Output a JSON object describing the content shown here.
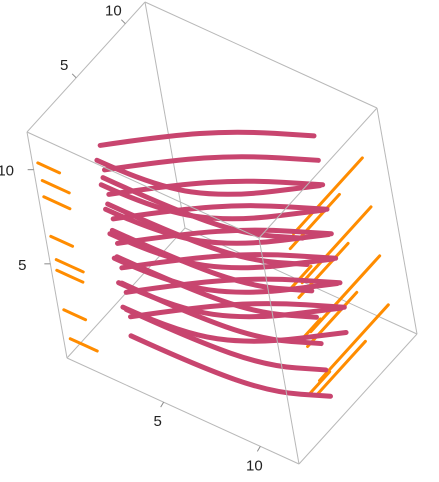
{
  "chart_data": {
    "type": "line",
    "dimension": "3d",
    "title": "",
    "box": true,
    "grid": false,
    "colors": {
      "main": "#c8456f",
      "shadow": "#ff8c00"
    },
    "axes": {
      "x": {
        "range": [
          0,
          12
        ],
        "tick_labels": [
          "5",
          "10"
        ],
        "ticks": [
          5,
          10
        ]
      },
      "y": {
        "range": [
          0,
          12
        ],
        "tick_labels": [
          "5",
          "10"
        ],
        "ticks": [
          5,
          10
        ]
      },
      "z": {
        "range": [
          0,
          12
        ],
        "tick_labels": [
          "5",
          "10"
        ],
        "ticks": [
          5,
          10
        ]
      }
    },
    "series": [
      {
        "values": [
          [
            2.0,
            3.0,
            10.5
          ],
          [
            4.0,
            5.5,
            10.5
          ],
          [
            6.5,
            8.0,
            10.5
          ],
          [
            9.5,
            10.0,
            10.5
          ]
        ]
      },
      {
        "values": [
          [
            2.0,
            3.0,
            9.2
          ],
          [
            4.0,
            5.5,
            9.2
          ],
          [
            6.5,
            8.0,
            9.2
          ],
          [
            9.5,
            10.0,
            9.2
          ]
        ]
      },
      {
        "values": [
          [
            2.0,
            3.0,
            7.9
          ],
          [
            4.0,
            5.5,
            7.9
          ],
          [
            6.5,
            8.0,
            7.9
          ],
          [
            9.5,
            10.0,
            7.9
          ]
        ]
      },
      {
        "values": [
          [
            2.0,
            3.0,
            6.6
          ],
          [
            4.0,
            5.5,
            6.6
          ],
          [
            6.5,
            8.0,
            6.6
          ],
          [
            9.5,
            10.0,
            6.6
          ]
        ]
      },
      {
        "values": [
          [
            2.0,
            3.0,
            5.3
          ],
          [
            4.0,
            5.5,
            5.3
          ],
          [
            6.5,
            8.0,
            5.3
          ],
          [
            9.5,
            10.0,
            5.3
          ]
        ]
      },
      {
        "values": [
          [
            2.0,
            3.0,
            4.0
          ],
          [
            4.0,
            5.5,
            4.0
          ],
          [
            6.5,
            8.0,
            4.0
          ],
          [
            9.5,
            10.0,
            4.0
          ]
        ]
      },
      {
        "values": [
          [
            2.0,
            3.0,
            2.7
          ],
          [
            4.0,
            5.5,
            2.7
          ],
          [
            6.5,
            8.0,
            2.7
          ],
          [
            9.5,
            10.0,
            2.7
          ]
        ]
      },
      {
        "values": [
          [
            2.0,
            3.0,
            1.4
          ],
          [
            4.0,
            5.5,
            1.4
          ],
          [
            6.5,
            8.0,
            1.4
          ],
          [
            9.5,
            10.0,
            1.4
          ]
        ]
      },
      {
        "values": [
          [
            2.0,
            2.5,
            10.0
          ],
          [
            5.0,
            2.5,
            10.0
          ],
          [
            8.0,
            4.0,
            10.0
          ],
          [
            11.0,
            7.5,
            10.0
          ]
        ]
      },
      {
        "values": [
          [
            2.0,
            2.5,
            8.7
          ],
          [
            5.0,
            2.5,
            8.7
          ],
          [
            8.0,
            4.0,
            8.7
          ],
          [
            11.0,
            7.5,
            8.7
          ]
        ]
      },
      {
        "values": [
          [
            2.0,
            2.5,
            7.4
          ],
          [
            5.0,
            2.5,
            7.4
          ],
          [
            8.0,
            4.0,
            7.4
          ],
          [
            11.0,
            7.5,
            7.4
          ]
        ]
      },
      {
        "values": [
          [
            2.0,
            2.5,
            6.1
          ],
          [
            5.0,
            2.5,
            6.1
          ],
          [
            8.0,
            4.0,
            6.1
          ],
          [
            11.0,
            7.5,
            6.1
          ]
        ]
      },
      {
        "values": [
          [
            2.0,
            2.5,
            4.8
          ],
          [
            5.0,
            2.5,
            4.8
          ],
          [
            8.0,
            4.0,
            4.8
          ],
          [
            11.0,
            7.5,
            4.8
          ]
        ]
      },
      {
        "values": [
          [
            2.0,
            2.5,
            3.5
          ],
          [
            5.0,
            2.5,
            3.5
          ],
          [
            8.0,
            4.0,
            3.5
          ],
          [
            11.0,
            7.5,
            3.5
          ]
        ]
      },
      {
        "values": [
          [
            2.0,
            2.5,
            2.2
          ],
          [
            5.0,
            2.5,
            2.2
          ],
          [
            8.0,
            4.0,
            2.2
          ],
          [
            11.0,
            7.5,
            2.2
          ]
        ]
      },
      {
        "values": [
          [
            2.5,
            2.0,
            9.6
          ],
          [
            6.0,
            2.0,
            9.6
          ],
          [
            9.5,
            2.5,
            9.6
          ],
          [
            11.8,
            4.0,
            9.6
          ]
        ]
      },
      {
        "values": [
          [
            2.5,
            2.0,
            8.2
          ],
          [
            6.0,
            2.0,
            8.2
          ],
          [
            9.5,
            2.5,
            8.2
          ],
          [
            11.8,
            4.0,
            8.2
          ]
        ]
      },
      {
        "values": [
          [
            2.5,
            2.0,
            6.8
          ],
          [
            6.0,
            2.0,
            6.8
          ],
          [
            9.5,
            2.5,
            6.8
          ],
          [
            11.8,
            4.0,
            6.8
          ]
        ]
      },
      {
        "values": [
          [
            2.5,
            2.0,
            5.4
          ],
          [
            6.0,
            2.0,
            5.4
          ],
          [
            9.5,
            2.5,
            5.4
          ],
          [
            11.8,
            4.0,
            5.4
          ]
        ]
      },
      {
        "values": [
          [
            2.5,
            2.0,
            4.0
          ],
          [
            6.0,
            2.0,
            4.0
          ],
          [
            9.5,
            2.5,
            4.0
          ],
          [
            11.8,
            4.0,
            4.0
          ]
        ]
      },
      {
        "values": [
          [
            2.5,
            2.0,
            2.6
          ],
          [
            6.0,
            2.0,
            2.6
          ],
          [
            9.5,
            2.5,
            2.6
          ],
          [
            11.8,
            4.0,
            2.6
          ]
        ]
      },
      {
        "values": [
          [
            2.5,
            2.0,
            1.2
          ],
          [
            6.0,
            2.0,
            1.2
          ],
          [
            9.5,
            2.5,
            1.2
          ],
          [
            11.8,
            4.0,
            1.2
          ]
        ]
      }
    ]
  }
}
